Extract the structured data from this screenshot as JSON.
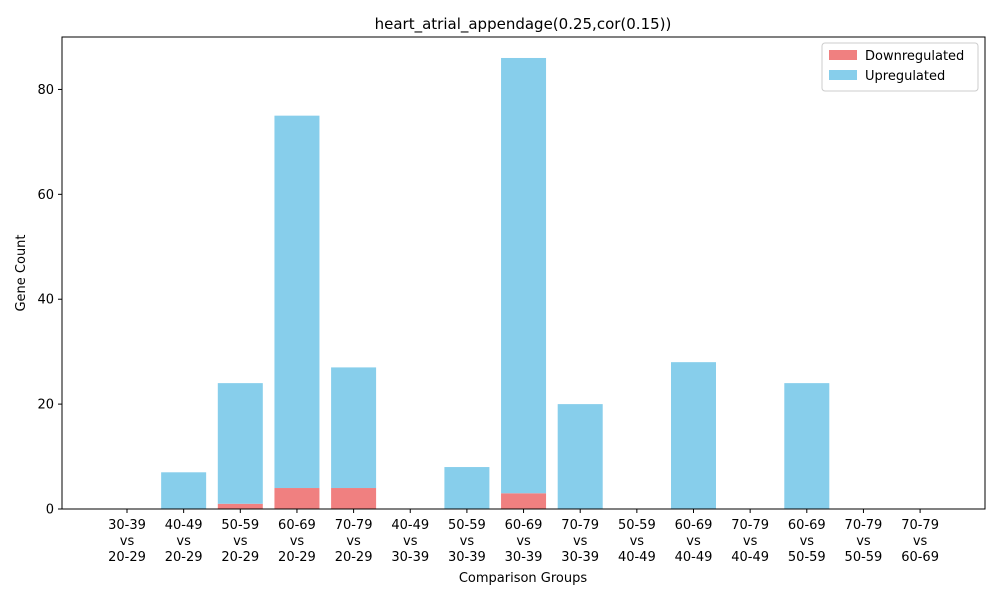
{
  "chart_data": {
    "type": "bar",
    "stacked": true,
    "title": "heart_atrial_appendage(0.25,cor(0.15))",
    "xlabel": "Comparison Groups",
    "ylabel": "Gene Count",
    "ylim": [
      0,
      90
    ],
    "yticks": [
      "0",
      "20",
      "40",
      "60",
      "80"
    ],
    "categories": [
      [
        "30-39",
        "vs",
        "20-29"
      ],
      [
        "40-49",
        "vs",
        "20-29"
      ],
      [
        "50-59",
        "vs",
        "20-29"
      ],
      [
        "60-69",
        "vs",
        "20-29"
      ],
      [
        "70-79",
        "vs",
        "20-29"
      ],
      [
        "40-49",
        "vs",
        "30-39"
      ],
      [
        "50-59",
        "vs",
        "30-39"
      ],
      [
        "60-69",
        "vs",
        "30-39"
      ],
      [
        "70-79",
        "vs",
        "30-39"
      ],
      [
        "50-59",
        "vs",
        "40-49"
      ],
      [
        "60-69",
        "vs",
        "40-49"
      ],
      [
        "70-79",
        "vs",
        "40-49"
      ],
      [
        "60-69",
        "vs",
        "50-59"
      ],
      [
        "70-79",
        "vs",
        "50-59"
      ],
      [
        "70-79",
        "vs",
        "60-69"
      ]
    ],
    "series": [
      {
        "name": "Downregulated",
        "color": "#f08080",
        "values": [
          0,
          0,
          1,
          4,
          4,
          0,
          0,
          3,
          0,
          0,
          0,
          0,
          0,
          0,
          0
        ]
      },
      {
        "name": "Upregulated",
        "color": "#87ceeb",
        "values": [
          0,
          7,
          23,
          71,
          23,
          0,
          8,
          83,
          20,
          0,
          28,
          0,
          24,
          0,
          0
        ]
      }
    ],
    "legend_position": "top-right",
    "grid": false
  }
}
